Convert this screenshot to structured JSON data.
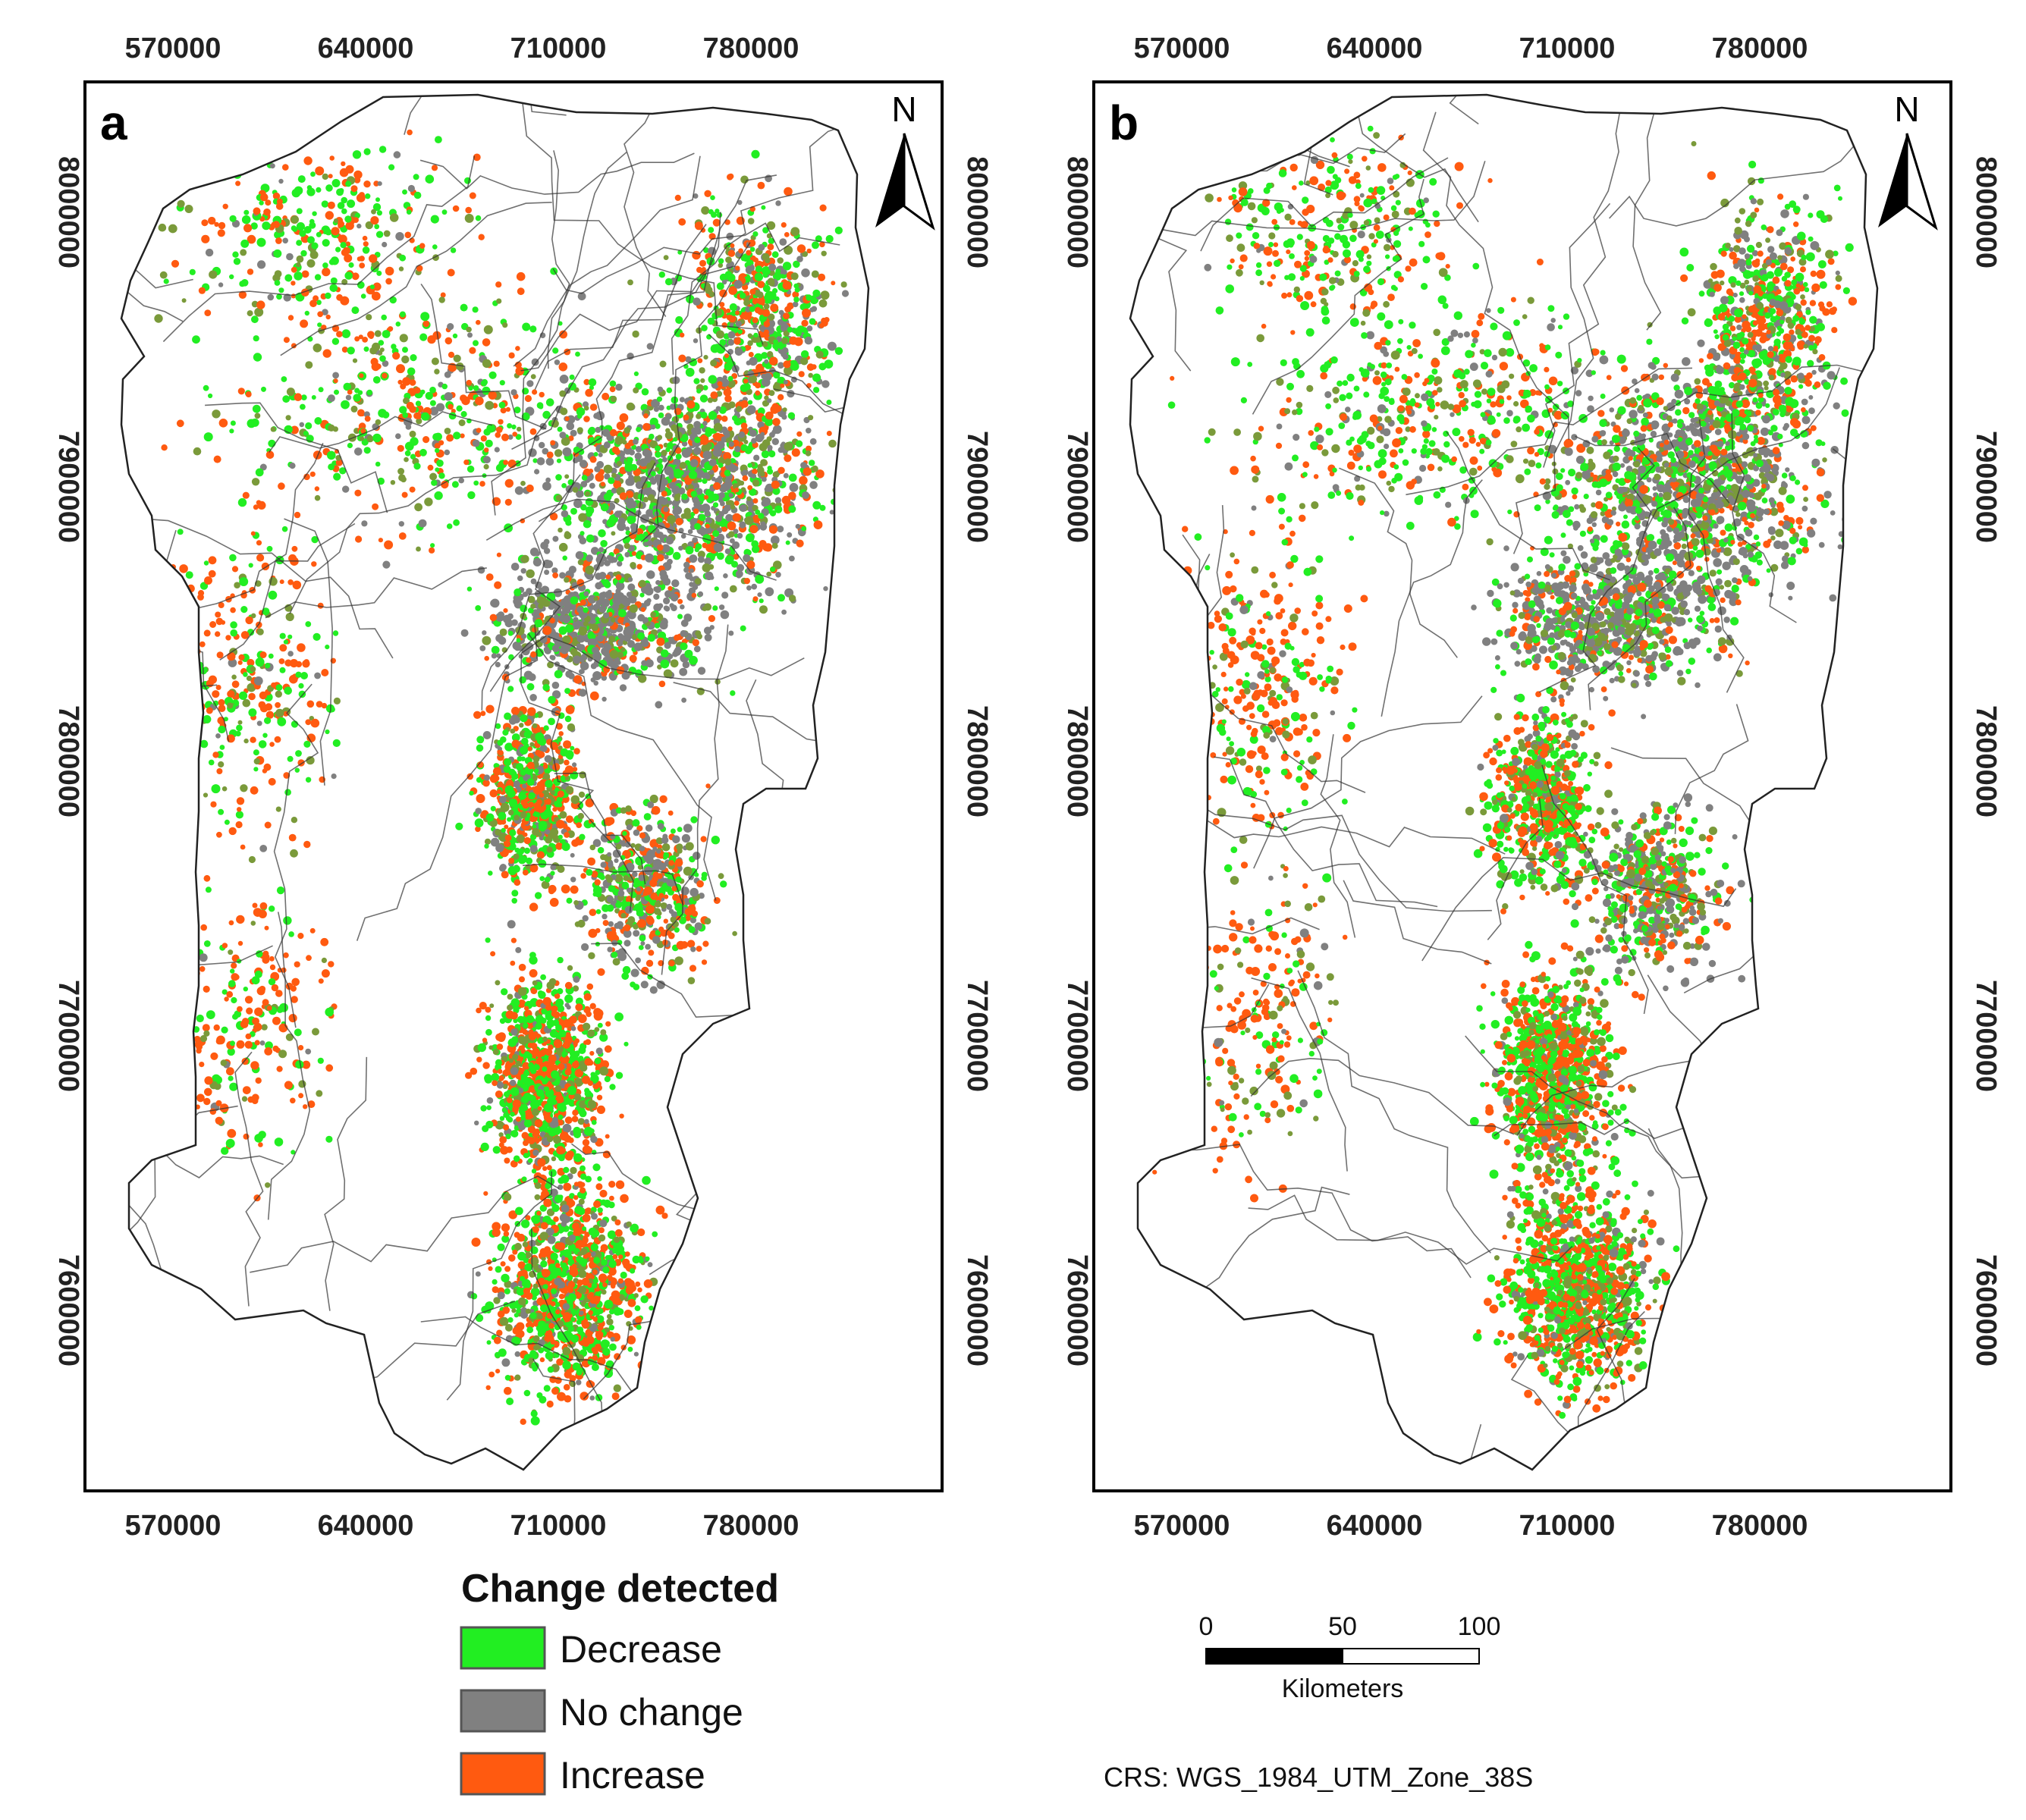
{
  "panels": [
    {
      "id": "a",
      "label": "a",
      "x_ticks": [
        "570000",
        "640000",
        "710000",
        "780000"
      ],
      "y_ticks": [
        "8000000",
        "7900000",
        "7800000",
        "7700000",
        "7600000"
      ],
      "north_label": "N",
      "dot_seed": 11
    },
    {
      "id": "b",
      "label": "b",
      "x_ticks": [
        "570000",
        "640000",
        "710000",
        "780000"
      ],
      "y_ticks": [
        "8000000",
        "7900000",
        "7800000",
        "7700000",
        "7600000"
      ],
      "north_label": "N",
      "dot_seed": 37
    }
  ],
  "legend": {
    "title": "Change detected",
    "items": [
      {
        "label": "Decrease",
        "color": "#22ee22"
      },
      {
        "label": "No change",
        "color": "#808080"
      },
      {
        "label": "Increase",
        "color": "#ff5a10"
      }
    ]
  },
  "scale_bar": {
    "ticks": [
      "0",
      "50",
      "100"
    ],
    "unit": "Kilometers"
  },
  "crs": "CRS: WGS_1984_UTM_Zone_38S",
  "colors": {
    "decrease": "#22ee22",
    "no_change": "#808080",
    "increase": "#ff5a10",
    "mixed": "#7a9a3a",
    "boundary": "#333333"
  }
}
